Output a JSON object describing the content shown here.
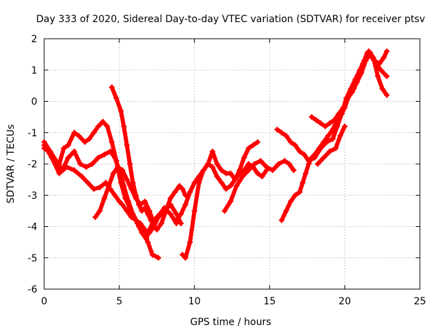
{
  "chart_data": {
    "type": "scatter",
    "title": "Day 333 of 2020, Sidereal Day-to-day VTEC variation (SDTVAR) for receiver ptsv",
    "xlabel": "GPS time / hours",
    "ylabel": "SDTVAR / TECUs",
    "xlim": [
      0,
      25
    ],
    "ylim": [
      -6,
      2
    ],
    "xticks": [
      0,
      5,
      10,
      15,
      20,
      25
    ],
    "yticks": [
      -6,
      -5,
      -4,
      -3,
      -2,
      -1,
      0,
      1,
      2
    ],
    "grid": true,
    "marker": "plus",
    "color": "#ff0000",
    "series": [
      {
        "x": [
          0,
          0.3,
          0.6,
          1.0,
          1.3,
          1.6,
          2.0,
          2.3,
          2.7,
          3.0,
          3.3,
          3.6,
          3.9,
          4.2,
          4.5,
          4.8,
          5.1,
          5.4,
          5.7,
          6.0,
          6.3,
          6.6,
          6.9,
          7.2,
          7.6
        ],
        "y": [
          -1.5,
          -1.6,
          -1.8,
          -2.0,
          -1.5,
          -1.4,
          -1.0,
          -1.1,
          -1.3,
          -1.2,
          -1.0,
          -0.8,
          -0.65,
          -0.8,
          -1.3,
          -1.9,
          -2.6,
          -3.1,
          -3.4,
          -3.7,
          -4.0,
          -4.2,
          -4.5,
          -4.9,
          -5.0
        ]
      },
      {
        "x": [
          0,
          0.4,
          0.8,
          1.2,
          1.6,
          2.0,
          2.4,
          2.8,
          3.2,
          3.6,
          4.0,
          4.4,
          4.7,
          5.0,
          5.3,
          5.6,
          5.9,
          6.2,
          6.5,
          6.8,
          7.0,
          7.3,
          7.7,
          8.0,
          8.4,
          8.8
        ],
        "y": [
          -1.3,
          -1.6,
          -1.9,
          -2.2,
          -1.8,
          -1.6,
          -2.0,
          -2.1,
          -2.0,
          -1.8,
          -1.7,
          -1.6,
          -1.8,
          -2.2,
          -2.7,
          -3.2,
          -3.6,
          -3.9,
          -4.2,
          -4.4,
          -4.1,
          -3.8,
          -3.6,
          -3.4,
          -3.6,
          -3.9
        ]
      },
      {
        "x": [
          0,
          0.5,
          1.0,
          1.5,
          2.0,
          2.5,
          2.9,
          3.3,
          3.7,
          4.1,
          4.4,
          4.7,
          5.0,
          5.2,
          5.5,
          5.8,
          6.1,
          6.4,
          6.7,
          7.0,
          7.3,
          7.6,
          8.0,
          8.4,
          8.8,
          9.1
        ],
        "y": [
          -1.4,
          -1.8,
          -2.3,
          -2.1,
          -2.2,
          -2.4,
          -2.6,
          -2.8,
          -2.75,
          -2.6,
          -2.8,
          -3.0,
          -3.2,
          -3.3,
          -3.5,
          -3.7,
          -3.8,
          -3.9,
          -4.1,
          -4.2,
          -4.0,
          -3.7,
          -3.5,
          -3.3,
          -3.6,
          -3.9
        ]
      },
      {
        "x": [
          3.4,
          3.7,
          4.0,
          4.3,
          4.6,
          4.9,
          5.2,
          5.5,
          5.8,
          6.1,
          6.4,
          6.7,
          7.0,
          7.3
        ],
        "y": [
          -3.7,
          -3.5,
          -3.1,
          -2.7,
          -2.3,
          -2.1,
          -2.2,
          -2.5,
          -2.8,
          -3.1,
          -3.3,
          -3.2,
          -3.5,
          -3.9
        ]
      },
      {
        "x": [
          4.5,
          4.8,
          5.1,
          5.3,
          5.5,
          5.7,
          5.9,
          6.1,
          6.3,
          6.5,
          6.7,
          6.9,
          7.1,
          7.3,
          7.5,
          7.8,
          8.1,
          8.4,
          8.7,
          9.0,
          9.2,
          9.4
        ],
        "y": [
          0.45,
          0.1,
          -0.3,
          -0.8,
          -1.4,
          -2.0,
          -2.6,
          -3.0,
          -3.3,
          -3.5,
          -3.4,
          -3.6,
          -3.8,
          -4.0,
          -4.1,
          -3.9,
          -3.5,
          -3.1,
          -2.9,
          -2.7,
          -2.8,
          -3.0
        ]
      },
      {
        "x": [
          9.2,
          9.4,
          9.7,
          10.0,
          10.3,
          10.6,
          10.9,
          11.2,
          11.5,
          11.8,
          12.1,
          12.4,
          12.7,
          13.0,
          13.3,
          13.6,
          13.9,
          14.2
        ],
        "y": [
          -4.9,
          -5.0,
          -4.5,
          -3.5,
          -2.6,
          -2.2,
          -2.0,
          -1.6,
          -2.0,
          -2.2,
          -2.3,
          -2.3,
          -2.5,
          -2.2,
          -1.8,
          -1.5,
          -1.4,
          -1.3
        ]
      },
      {
        "x": [
          8.8,
          9.1,
          9.4,
          9.7,
          10.0,
          10.3,
          10.6,
          10.9,
          11.2,
          11.5,
          11.8,
          12.1,
          12.4,
          12.7,
          13.0,
          13.3,
          13.6,
          13.9,
          14.2,
          14.5,
          14.8
        ],
        "y": [
          -3.8,
          -3.6,
          -3.3,
          -2.9,
          -2.6,
          -2.4,
          -2.2,
          -2.0,
          -2.1,
          -2.4,
          -2.6,
          -2.8,
          -2.7,
          -2.5,
          -2.3,
          -2.2,
          -2.0,
          -2.1,
          -2.3,
          -2.4,
          -2.2
        ]
      },
      {
        "x": [
          12.0,
          12.4,
          12.8,
          13.2,
          13.6,
          14.0,
          14.4,
          14.8,
          15.2,
          15.6,
          16.0,
          16.3,
          16.6
        ],
        "y": [
          -3.5,
          -3.2,
          -2.7,
          -2.4,
          -2.2,
          -2.0,
          -1.9,
          -2.1,
          -2.2,
          -2.0,
          -1.9,
          -2.0,
          -2.2
        ]
      },
      {
        "x": [
          15.8,
          16.1,
          16.4,
          16.7,
          17.0,
          17.2,
          17.4,
          17.6,
          17.8,
          18.0,
          18.3,
          18.6,
          18.9,
          19.2,
          19.5,
          19.8,
          20.0,
          20.3,
          20.6,
          20.9,
          21.2,
          21.5,
          21.8,
          22.1,
          22.4,
          22.8
        ],
        "y": [
          -3.8,
          -3.5,
          -3.2,
          -3.0,
          -2.9,
          -2.6,
          -2.3,
          -2.0,
          -1.8,
          -1.7,
          -1.5,
          -1.3,
          -1.1,
          -0.9,
          -0.6,
          -0.4,
          -0.2,
          0.2,
          0.4,
          0.8,
          1.2,
          1.55,
          1.4,
          1.2,
          1.0,
          0.8
        ]
      },
      {
        "x": [
          15.5,
          15.8,
          16.1,
          16.4,
          16.7,
          17.0,
          17.3,
          17.6,
          18.0,
          18.4,
          18.8,
          19.2,
          19.5,
          19.8,
          20.1,
          20.4,
          20.7,
          21.0,
          21.3,
          21.6,
          21.9,
          22.2,
          22.5,
          22.8
        ],
        "y": [
          -0.9,
          -1.0,
          -1.1,
          -1.3,
          -1.4,
          -1.6,
          -1.7,
          -1.9,
          -1.8,
          -1.5,
          -1.3,
          -1.2,
          -0.8,
          -0.4,
          0.1,
          0.4,
          0.7,
          1.0,
          1.3,
          1.6,
          1.4,
          0.8,
          0.4,
          0.2
        ]
      },
      {
        "x": [
          17.8,
          18.1,
          18.4,
          18.7,
          19.0,
          19.3,
          19.6,
          19.9,
          20.2,
          20.5,
          20.8,
          21.1,
          21.4,
          21.7,
          22.0,
          22.3,
          22.6,
          22.8
        ],
        "y": [
          -0.5,
          -0.6,
          -0.7,
          -0.8,
          -0.7,
          -0.6,
          -0.4,
          -0.2,
          0.1,
          0.3,
          0.6,
          0.9,
          1.3,
          1.55,
          1.3,
          1.2,
          1.4,
          1.6
        ]
      },
      {
        "x": [
          18.2,
          18.6,
          19.0,
          19.4,
          19.7,
          20.0
        ],
        "y": [
          -2.0,
          -1.8,
          -1.6,
          -1.5,
          -1.1,
          -0.8
        ]
      }
    ]
  }
}
